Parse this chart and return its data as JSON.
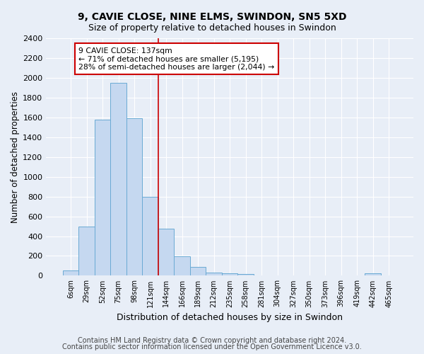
{
  "title_line1": "9, CAVIE CLOSE, NINE ELMS, SWINDON, SN5 5XD",
  "title_line2": "Size of property relative to detached houses in Swindon",
  "xlabel": "Distribution of detached houses by size in Swindon",
  "ylabel": "Number of detached properties",
  "categories": [
    "6sqm",
    "29sqm",
    "52sqm",
    "75sqm",
    "98sqm",
    "121sqm",
    "144sqm",
    "166sqm",
    "189sqm",
    "212sqm",
    "235sqm",
    "258sqm",
    "281sqm",
    "304sqm",
    "327sqm",
    "350sqm",
    "373sqm",
    "396sqm",
    "419sqm",
    "442sqm",
    "465sqm"
  ],
  "values": [
    55,
    500,
    1580,
    1950,
    1590,
    800,
    475,
    195,
    90,
    35,
    28,
    15,
    0,
    0,
    0,
    0,
    0,
    0,
    0,
    22,
    0
  ],
  "bar_color": "#c5d8f0",
  "bar_edge_color": "#6aaad4",
  "vline_x_idx": 5.5,
  "vline_color": "#cc0000",
  "annotation_text": "9 CAVIE CLOSE: 137sqm\n← 71% of detached houses are smaller (5,195)\n28% of semi-detached houses are larger (2,044) →",
  "annotation_box_color": "#ffffff",
  "annotation_box_edge_color": "#cc0000",
  "ylim": [
    0,
    2400
  ],
  "yticks": [
    0,
    200,
    400,
    600,
    800,
    1000,
    1200,
    1400,
    1600,
    1800,
    2000,
    2200,
    2400
  ],
  "footer_line1": "Contains HM Land Registry data © Crown copyright and database right 2024.",
  "footer_line2": "Contains public sector information licensed under the Open Government Licence v3.0.",
  "background_color": "#e8eef7",
  "plot_bg_color": "#e8eef7",
  "grid_color": "#ffffff",
  "title_fontsize": 10,
  "subtitle_fontsize": 9,
  "axis_label_fontsize": 8.5,
  "tick_fontsize": 7,
  "footer_fontsize": 7
}
